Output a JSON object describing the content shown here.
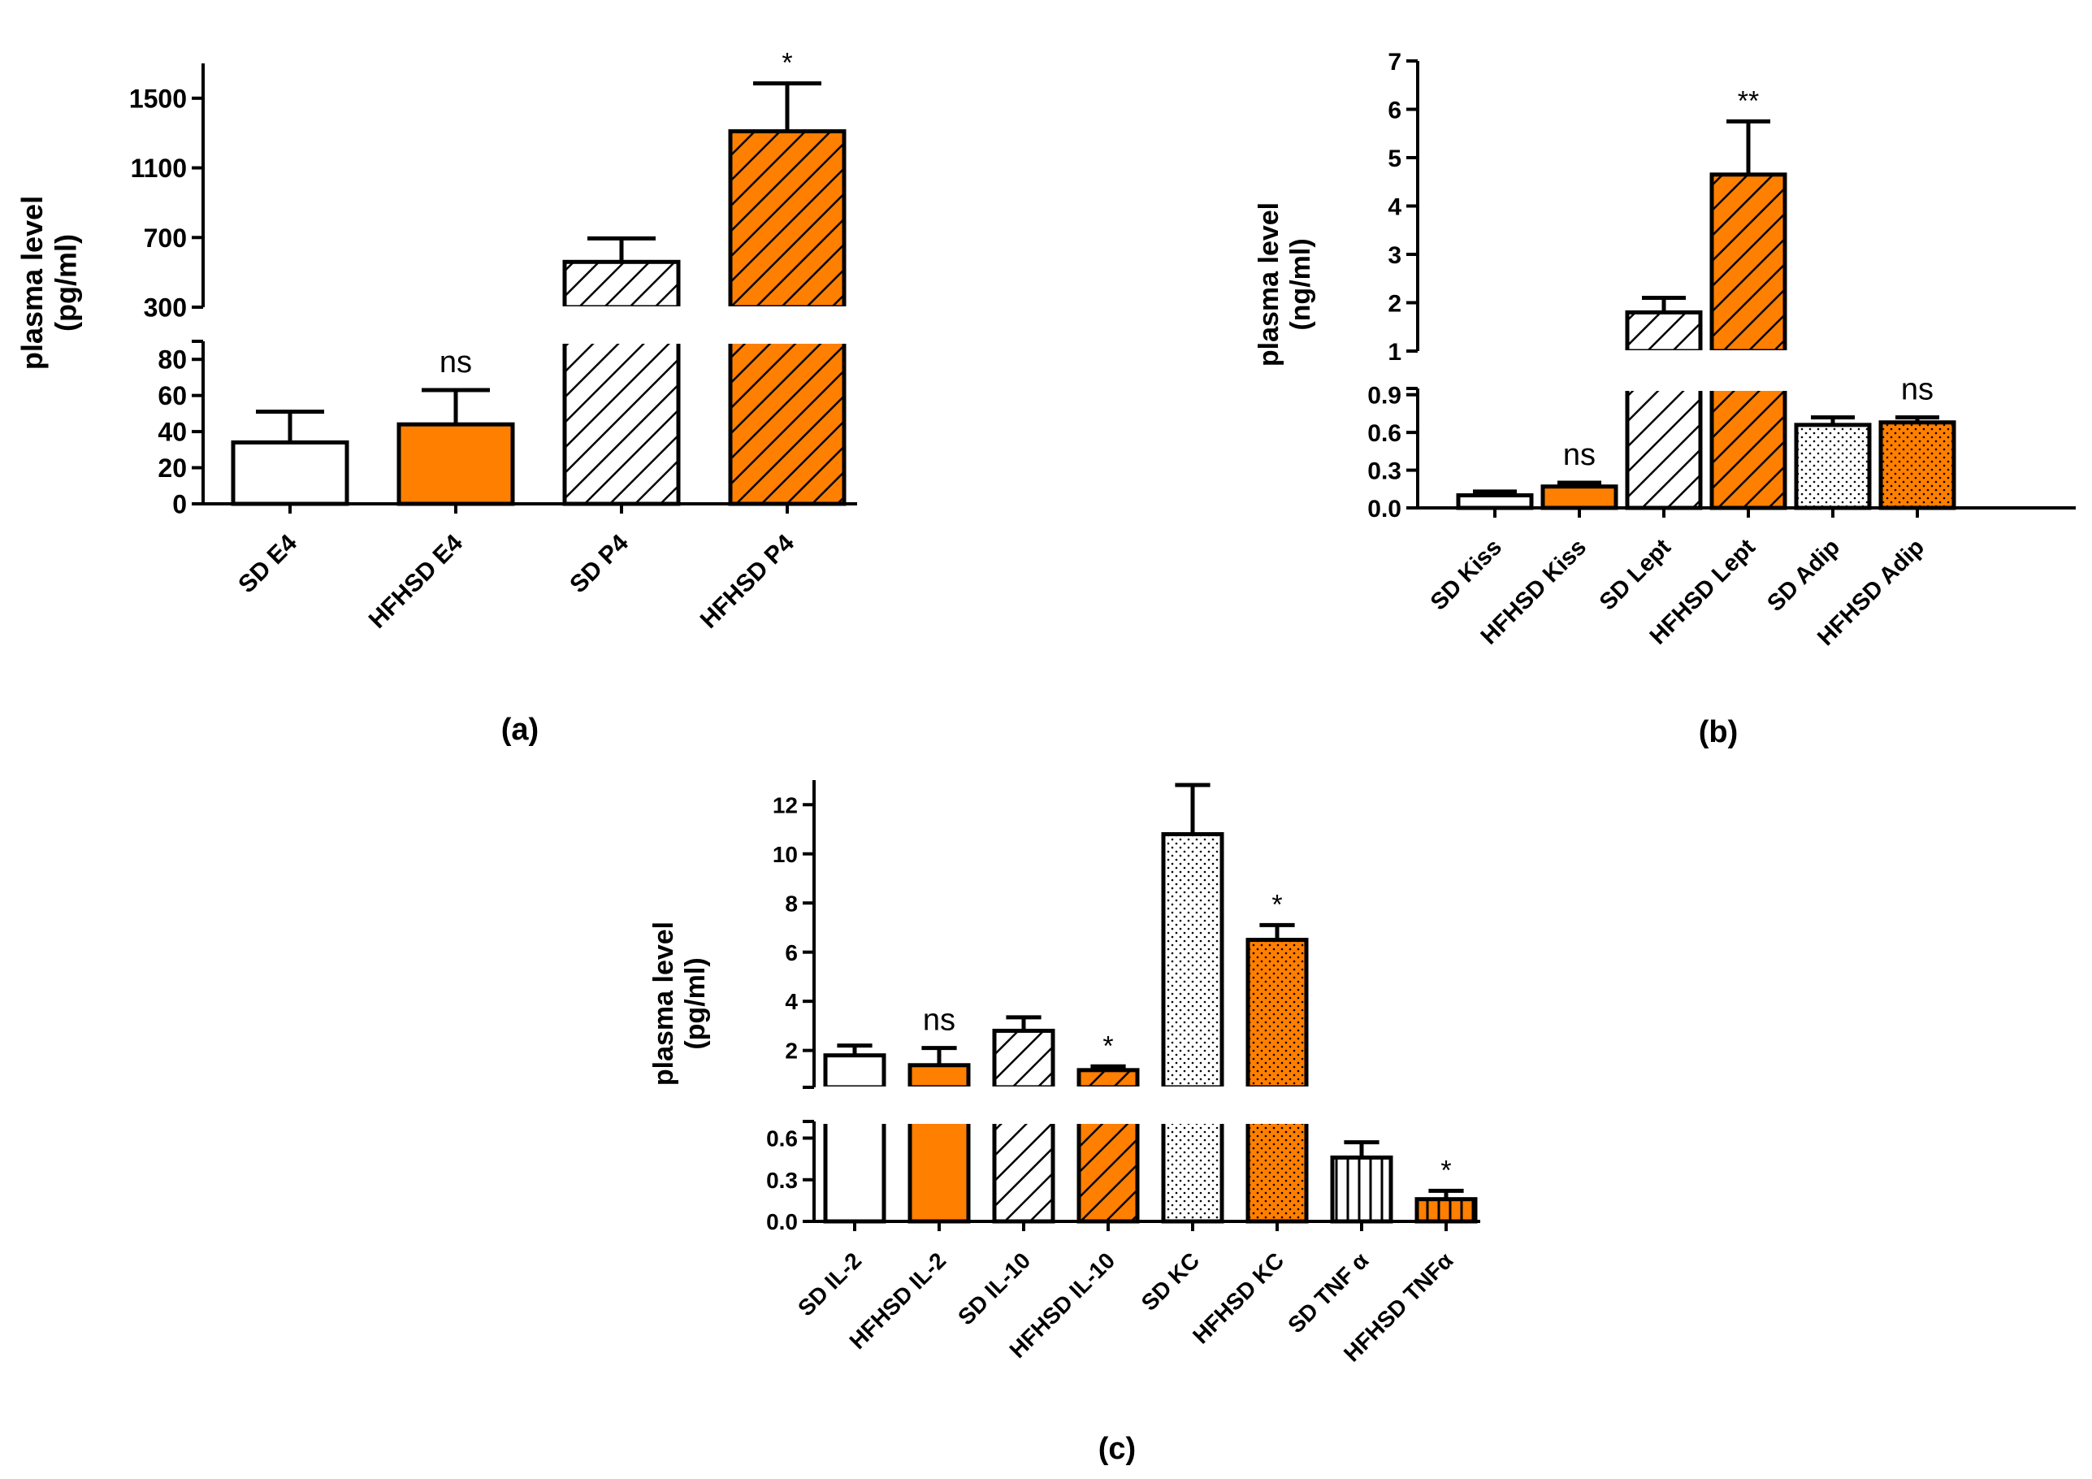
{
  "colors": {
    "orange": "#ff7f00",
    "white": "#ffffff",
    "black": "#000000"
  },
  "chart_data": [
    {
      "type": "bar",
      "panel": "(a)",
      "ylabel": [
        "plasma level",
        "(pg/ml)"
      ],
      "categories": [
        "SD E4",
        "HFHSD E4",
        "SD P4",
        "HFHSD P4"
      ],
      "values": [
        34,
        44,
        560,
        1310
      ],
      "errors": [
        17,
        19,
        135,
        275
      ],
      "fills": [
        "white",
        "orange",
        "white",
        "orange"
      ],
      "patterns": [
        "none",
        "none",
        "diag",
        "diag"
      ],
      "significance": [
        "",
        "ns",
        "",
        "*"
      ],
      "lower_axis": {
        "range": [
          0,
          90
        ],
        "ticks": [
          0,
          20,
          40,
          60,
          80
        ]
      },
      "upper_axis": {
        "range": [
          300,
          1700
        ],
        "ticks": [
          300,
          700,
          1100,
          1500
        ]
      }
    },
    {
      "type": "bar",
      "panel": "(b)",
      "ylabel": [
        "plasma level",
        "(ng/ml)"
      ],
      "categories": [
        "SD Kiss",
        "HFHSD Kiss",
        "SD Lept",
        "HFHSD Lept",
        "SD Adip",
        "HFHSD Adip"
      ],
      "values": [
        0.1,
        0.17,
        1.8,
        4.65,
        0.66,
        0.68
      ],
      "errors": [
        0.03,
        0.03,
        0.3,
        1.1,
        0.06,
        0.04
      ],
      "fills": [
        "white",
        "orange",
        "white",
        "orange",
        "white",
        "orange"
      ],
      "patterns": [
        "none",
        "none",
        "diag",
        "diag",
        "dots",
        "dots"
      ],
      "significance": [
        "",
        "ns",
        "",
        "**",
        "",
        "ns"
      ],
      "lower_axis": {
        "range": [
          0,
          0.95
        ],
        "ticks": [
          0.0,
          0.3,
          0.6,
          0.9
        ],
        "tick_labels": [
          "0.0",
          "0.3",
          "0.6",
          "0.9"
        ]
      },
      "upper_axis": {
        "range": [
          1,
          7
        ],
        "ticks": [
          1,
          2,
          3,
          4,
          5,
          6,
          7
        ]
      }
    },
    {
      "type": "bar",
      "panel": "(c)",
      "ylabel": [
        "plasma level",
        "(pg/ml)"
      ],
      "categories": [
        "SD IL-2",
        "HFHSD IL-2",
        "SD IL-10",
        "HFHSD IL-10",
        "SD KC",
        "HFHSD KC",
        "SD TNF α",
        "HFHSD TNFα"
      ],
      "values": [
        1.8,
        1.4,
        2.8,
        1.2,
        10.8,
        6.5,
        0.46,
        0.16
      ],
      "errors": [
        0.4,
        0.7,
        0.55,
        0.15,
        2.0,
        0.6,
        0.11,
        0.06
      ],
      "fills": [
        "white",
        "orange",
        "white",
        "orange",
        "white",
        "orange",
        "white",
        "orange"
      ],
      "patterns": [
        "none",
        "none",
        "diag",
        "diag",
        "dots",
        "dots",
        "vert",
        "vert"
      ],
      "significance": [
        "",
        "ns",
        "",
        "*",
        "",
        "*",
        "",
        "*"
      ],
      "lower_axis": {
        "range": [
          0,
          0.72
        ],
        "ticks": [
          0.0,
          0.3,
          0.6
        ],
        "tick_labels": [
          "0.0",
          "0.3",
          "0.6"
        ]
      },
      "upper_axis": {
        "range": [
          0.5,
          13
        ],
        "ticks": [
          2,
          4,
          6,
          8,
          10,
          12
        ]
      }
    }
  ]
}
